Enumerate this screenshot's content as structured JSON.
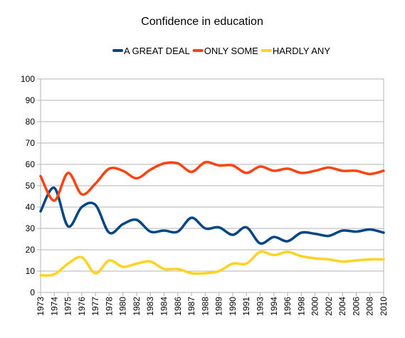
{
  "chart_data": {
    "type": "line",
    "title": "Confidence in education",
    "xlabel": "",
    "ylabel": "",
    "ylim": [
      0,
      100
    ],
    "yticks": [
      0,
      10,
      20,
      30,
      40,
      50,
      60,
      70,
      80,
      90,
      100
    ],
    "grid": true,
    "legend": "top",
    "categories": [
      "1973",
      "1974",
      "1975",
      "1976",
      "1977",
      "1978",
      "1980",
      "1982",
      "1983",
      "1984",
      "1986",
      "1987",
      "1988",
      "1989",
      "1990",
      "1991",
      "1993",
      "1994",
      "1996",
      "1998",
      "2000",
      "2002",
      "2004",
      "2006",
      "2008",
      "2010"
    ],
    "series": [
      {
        "name": "A GREAT DEAL",
        "color": "#004586",
        "values": [
          38,
          49,
          31,
          40,
          41,
          28,
          32,
          34,
          28.5,
          29,
          28.5,
          35,
          30,
          30.5,
          27,
          30.5,
          23,
          26,
          24,
          28,
          27.5,
          26.5,
          29,
          28.5,
          29.5,
          28
        ]
      },
      {
        "name": "ONLY SOME",
        "color": "#ff420e",
        "values": [
          54.5,
          43,
          56,
          46,
          51,
          58,
          57,
          53.5,
          57.5,
          60.5,
          60.5,
          56.5,
          61,
          59.5,
          59.5,
          56,
          59,
          57,
          58,
          56,
          57,
          58.5,
          57,
          57,
          55.5,
          57
        ]
      },
      {
        "name": "HARDLY ANY",
        "color": "#ffd320",
        "values": [
          8,
          8.5,
          13.5,
          16.5,
          9,
          15,
          12,
          13.5,
          14.5,
          11,
          11,
          9,
          9,
          10,
          13.5,
          13.5,
          19,
          17.5,
          19,
          17,
          16,
          15.5,
          14.5,
          15,
          15.5,
          15.5
        ]
      }
    ]
  }
}
